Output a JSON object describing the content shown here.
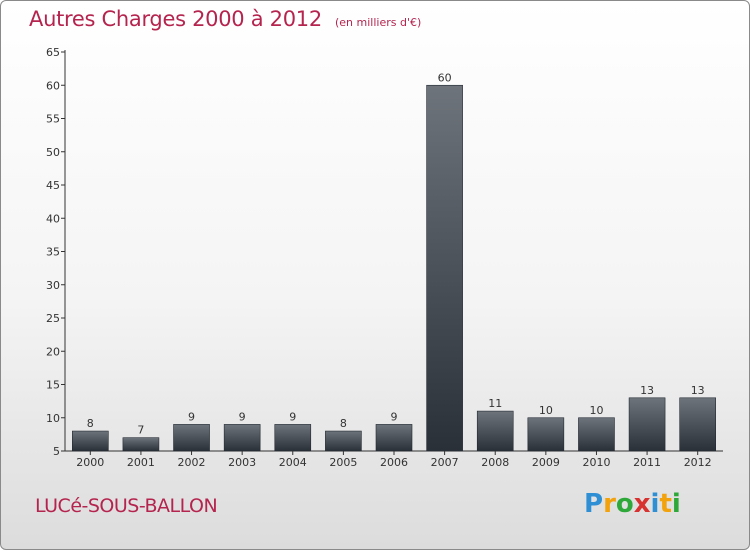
{
  "header": {
    "title": "Autres Charges 2000 à 2012",
    "subtitle": "(en milliers d'€)"
  },
  "footer": {
    "place": "LUCé-SOUS-BALLON",
    "logo": [
      "P",
      "r",
      "o",
      "x",
      "i",
      "t",
      "i"
    ]
  },
  "colors": {
    "title": "#b5244e",
    "bar_top": "#6e747b",
    "bar_bottom": "#2a3038",
    "logo": [
      "#2f8fd4",
      "#f2a20c",
      "#2fa83a",
      "#d7322f",
      "#2f8fd4",
      "#f2a20c",
      "#2fa83a"
    ]
  },
  "chart_data": {
    "type": "bar",
    "title": "Autres Charges 2000 à 2012",
    "subtitle": "(en milliers d'€)",
    "categories": [
      "2000",
      "2001",
      "2002",
      "2003",
      "2004",
      "2005",
      "2006",
      "2007",
      "2008",
      "2009",
      "2010",
      "2011",
      "2012"
    ],
    "values": [
      8,
      7,
      9,
      9,
      9,
      8,
      9,
      60,
      11,
      10,
      10,
      13,
      13
    ],
    "xlabel": "",
    "ylabel": "",
    "ylim": [
      5,
      65
    ],
    "yticks": [
      5,
      10,
      15,
      20,
      25,
      30,
      35,
      40,
      45,
      50,
      55,
      60,
      65
    ],
    "grid": false,
    "legend": "none"
  }
}
